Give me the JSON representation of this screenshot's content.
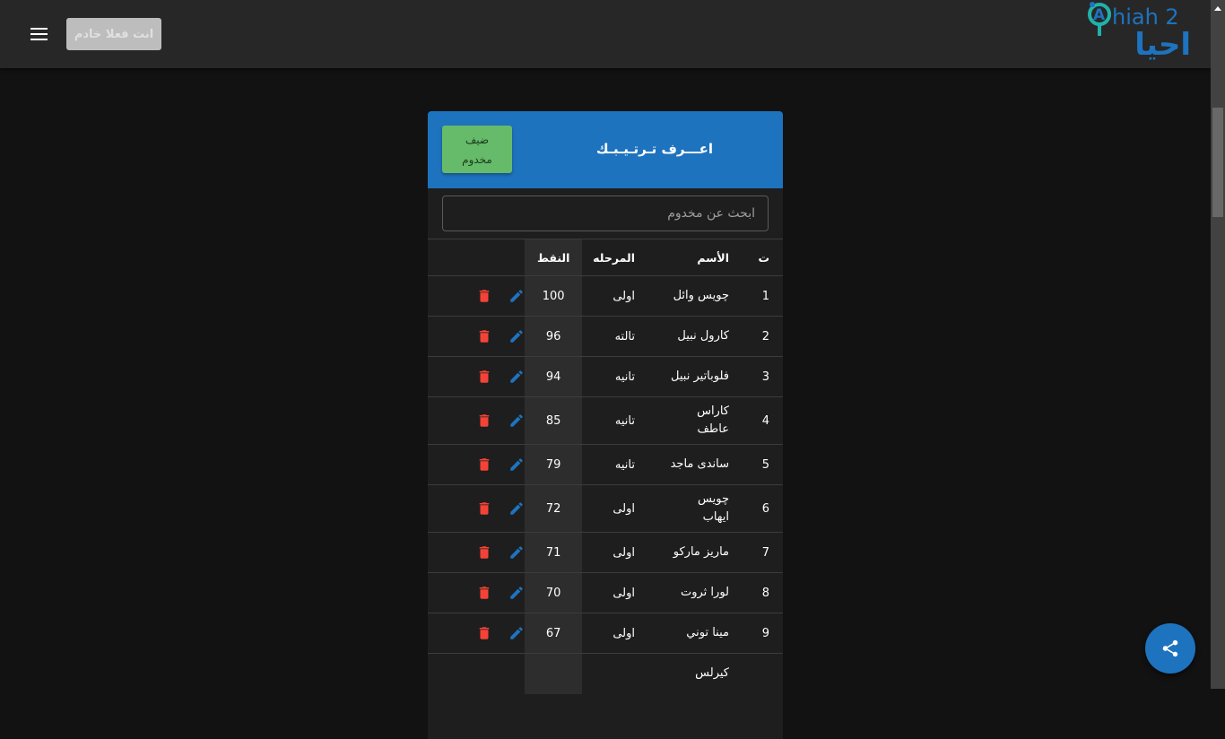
{
  "topbar": {
    "servant_button": "انت فعلا خادم",
    "logo_text_en": "Ahiah 2",
    "logo_text_ar": "احيا"
  },
  "card": {
    "title": "اعـــرف تـرتـيـبـك",
    "add_button": "ضيف مخدوم",
    "search_placeholder": "ابحث عن مخدوم",
    "columns": [
      "ت",
      "الأسم",
      "المرحله",
      "النقط",
      ""
    ],
    "rows": [
      {
        "n": "1",
        "name": "چويس وائل",
        "stage": "اولى",
        "points": "100"
      },
      {
        "n": "2",
        "name": "كارول نبيل",
        "stage": "تالته",
        "points": "96"
      },
      {
        "n": "3",
        "name": "فلوباتير نبيل",
        "stage": "تانيه",
        "points": "94"
      },
      {
        "n": "4",
        "name": "كاراس عاطف",
        "stage": "تانيه",
        "points": "85"
      },
      {
        "n": "5",
        "name": "ساندى ماجد",
        "stage": "تانيه",
        "points": "79"
      },
      {
        "n": "6",
        "name": "چويس ايهاب",
        "stage": "اولى",
        "points": "72"
      },
      {
        "n": "7",
        "name": "ماريز ماركو",
        "stage": "اولى",
        "points": "71"
      },
      {
        "n": "8",
        "name": "لورا ثروت",
        "stage": "اولى",
        "points": "70"
      },
      {
        "n": "9",
        "name": "مينا توني",
        "stage": "اولى",
        "points": "67"
      },
      {
        "n": "",
        "name": "كيرلس",
        "stage": "",
        "points": ""
      }
    ]
  },
  "colors": {
    "primary": "#1e73be",
    "add": "#66bb6a",
    "delete": "#f44336",
    "edit": "#1e73be"
  },
  "icons": {
    "menu": "menu-icon",
    "edit": "pencil-icon",
    "delete": "trash-icon",
    "share": "share-icon"
  }
}
